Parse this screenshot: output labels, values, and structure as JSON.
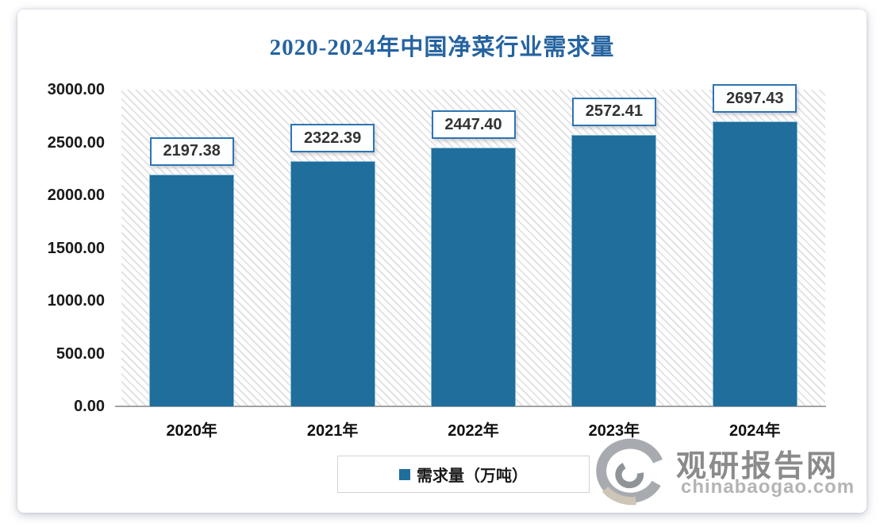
{
  "title": {
    "text": "2020-2024年中国净菜行业需求量",
    "color": "#2563A0"
  },
  "chart_data": {
    "type": "bar",
    "title": "2020-2024年中国净菜行业需求量",
    "categories": [
      "2020年",
      "2021年",
      "2022年",
      "2023年",
      "2024年"
    ],
    "values": [
      2197.38,
      2322.39,
      2447.4,
      2572.41,
      2697.43
    ],
    "value_labels": [
      "2197.38",
      "2322.39",
      "2447.40",
      "2572.41",
      "2697.43"
    ],
    "series_name": "需求量（万吨）",
    "xlabel": "",
    "ylabel": "",
    "ylim": [
      0,
      3000
    ],
    "y_ticks": [
      "3000.00",
      "2500.00",
      "2000.00",
      "1500.00",
      "1000.00",
      "500.00",
      "0.00"
    ],
    "grid": false,
    "legend_position": "bottom",
    "bar_color": "#1F6E9C",
    "plot_background": "diagonal-hatch"
  },
  "legend": {
    "label": "需求量（万吨）",
    "swatch_color": "#1F6E9C"
  },
  "watermark": {
    "name": "观研报告网",
    "url": "chinabaogao.com",
    "name_color": "#8b8b8b",
    "url_color": "#b4b4b4"
  },
  "colors": {
    "bar": "#1F6E9C",
    "bar_edge": "#86B9D6",
    "title": "#2563A0",
    "label_box_border": "#2E74B5",
    "axis_line": "#a3a3a3"
  }
}
